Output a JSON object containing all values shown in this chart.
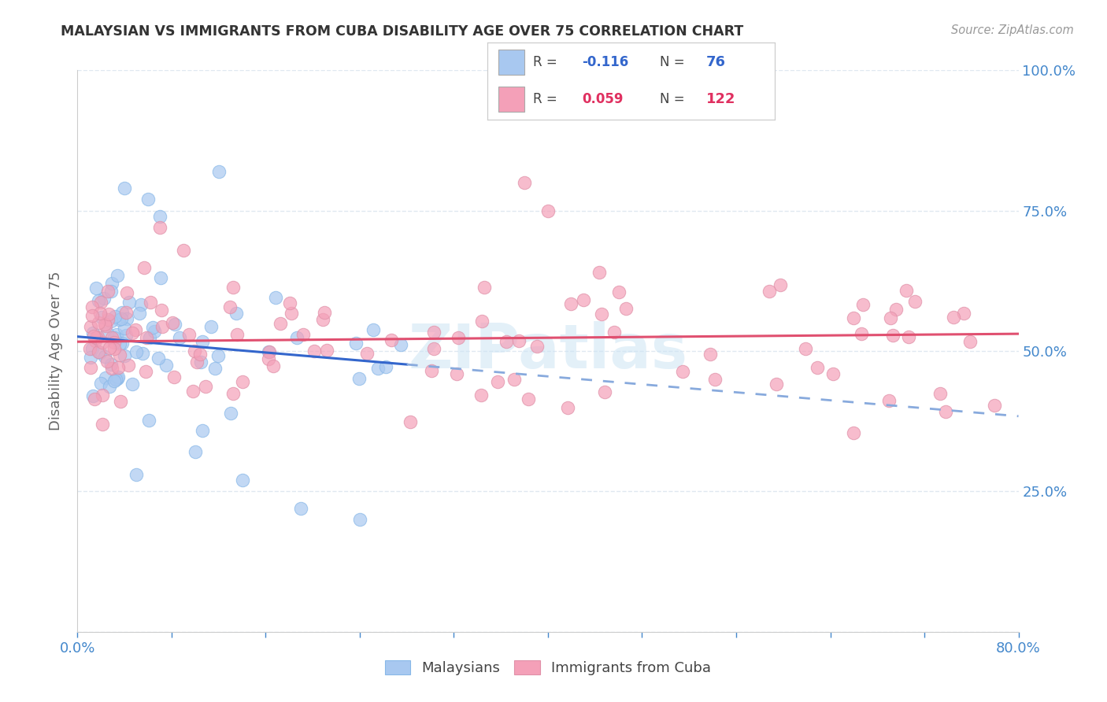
{
  "title": "MALAYSIAN VS IMMIGRANTS FROM CUBA DISABILITY AGE OVER 75 CORRELATION CHART",
  "source": "Source: ZipAtlas.com",
  "ylabel": "Disability Age Over 75",
  "xlim": [
    0.0,
    0.8
  ],
  "ylim": [
    0.0,
    1.0
  ],
  "blue_R": -0.116,
  "blue_N": 76,
  "pink_R": 0.059,
  "pink_N": 122,
  "blue_color": "#a8c8f0",
  "pink_color": "#f4a0b8",
  "blue_line_color": "#3366cc",
  "pink_line_color": "#e05070",
  "blue_dash_color": "#88aadd",
  "watermark": "ZIPatlas",
  "legend_label_blue": "Malaysians",
  "legend_label_pink": "Immigrants from Cuba",
  "grid_color": "#e0e8f0",
  "spine_color": "#cccccc",
  "right_tick_color": "#4488cc",
  "title_color": "#333333",
  "source_color": "#999999",
  "ylabel_color": "#666666"
}
